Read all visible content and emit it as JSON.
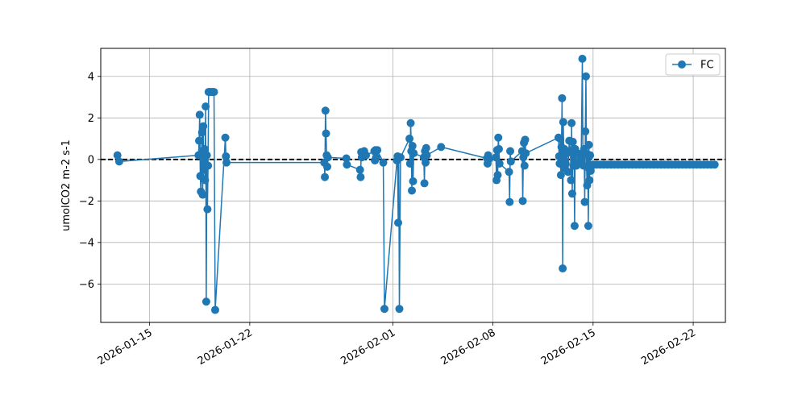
{
  "chart_data": {
    "type": "line",
    "title": "",
    "xlabel": "",
    "ylabel": "umolCO2 m-2 s-1",
    "x_axis": {
      "type": "date",
      "range": [
        "2026-01-11T14:00",
        "2026-02-24T06:00"
      ]
    },
    "ylim": [
      -7.85,
      5.35
    ],
    "x_ticks": [
      "2026-01-15",
      "2026-01-22",
      "2026-02-01",
      "2026-02-08",
      "2026-02-15",
      "2026-02-22"
    ],
    "y_ticks": [
      4,
      2,
      0,
      -2,
      -4,
      -6
    ],
    "y_tick_labels": [
      "4",
      "2",
      "0",
      "−2",
      "−4",
      "−6"
    ],
    "grid": true,
    "legend": {
      "position": "top-right",
      "entries": [
        "FC"
      ]
    },
    "reference_line": {
      "y": 0,
      "style": "dashed",
      "color": "#000000"
    },
    "colors": {
      "series": "#1f77b4"
    },
    "series": [
      {
        "name": "FC",
        "points": [
          [
            "2026-01-12T18:00",
            0.2
          ],
          [
            "2026-01-12T21:00",
            -0.1
          ],
          [
            "2026-01-18T10:00",
            0.2
          ],
          [
            "2026-01-18T11:00",
            0.9
          ],
          [
            "2026-01-18T12:00",
            2.15
          ],
          [
            "2026-01-18T13:00",
            -0.8
          ],
          [
            "2026-01-18T14:00",
            -1.55
          ],
          [
            "2026-01-18T15:00",
            0.3
          ],
          [
            "2026-01-18T16:00",
            1.3
          ],
          [
            "2026-01-18T17:00",
            -1.7
          ],
          [
            "2026-01-18T18:00",
            1.6
          ],
          [
            "2026-01-18T19:00",
            -0.5
          ],
          [
            "2026-01-18T20:00",
            0.5
          ],
          [
            "2026-01-18T21:00",
            -1.0
          ],
          [
            "2026-01-18T22:00",
            2.55
          ],
          [
            "2026-01-18T23:00",
            -6.85
          ],
          [
            "2026-01-19T00:00",
            0.2
          ],
          [
            "2026-01-19T01:00",
            -2.4
          ],
          [
            "2026-01-19T02:00",
            -0.3
          ],
          [
            "2026-01-19T03:00",
            3.25
          ],
          [
            "2026-01-19T04:00",
            3.25
          ],
          [
            "2026-01-19T06:00",
            3.25
          ],
          [
            "2026-01-19T08:00",
            3.25
          ],
          [
            "2026-01-19T10:00",
            3.25
          ],
          [
            "2026-01-19T12:00",
            3.25
          ],
          [
            "2026-01-19T14:00",
            -7.25
          ],
          [
            "2026-01-20T07:00",
            1.05
          ],
          [
            "2026-01-20T08:00",
            0.15
          ],
          [
            "2026-01-20T09:00",
            -0.15
          ],
          [
            "2026-01-27T05:00",
            -0.15
          ],
          [
            "2026-01-27T06:00",
            -0.85
          ],
          [
            "2026-01-27T07:00",
            2.35
          ],
          [
            "2026-01-27T08:00",
            1.25
          ],
          [
            "2026-01-27T09:00",
            0.2
          ],
          [
            "2026-01-27T10:00",
            -0.35
          ],
          [
            "2026-01-27T11:00",
            0.1
          ],
          [
            "2026-01-28T18:00",
            0.05
          ],
          [
            "2026-01-28T19:00",
            -0.25
          ],
          [
            "2026-01-29T17:00",
            -0.5
          ],
          [
            "2026-01-29T18:00",
            -0.85
          ],
          [
            "2026-01-29T19:00",
            0.35
          ],
          [
            "2026-01-29T20:00",
            0.1
          ],
          [
            "2026-01-29T22:00",
            0.35
          ],
          [
            "2026-01-30T00:00",
            0.4
          ],
          [
            "2026-01-30T03:00",
            0.2
          ],
          [
            "2026-01-30T17:00",
            0.4
          ],
          [
            "2026-01-30T18:00",
            -0.05
          ],
          [
            "2026-01-30T19:00",
            0.45
          ],
          [
            "2026-01-30T20:00",
            0.1
          ],
          [
            "2026-01-30T22:00",
            0.45
          ],
          [
            "2026-01-31T08:00",
            -0.15
          ],
          [
            "2026-01-31T10:00",
            -7.2
          ],
          [
            "2026-02-01T07:00",
            -0.05
          ],
          [
            "2026-02-01T08:00",
            0.15
          ],
          [
            "2026-02-01T09:00",
            -3.05
          ],
          [
            "2026-02-01T10:00",
            0.1
          ],
          [
            "2026-02-01T11:00",
            -7.2
          ],
          [
            "2026-02-01T13:00",
            0.1
          ],
          [
            "2026-02-02T04:00",
            1.0
          ],
          [
            "2026-02-02T05:00",
            -0.2
          ],
          [
            "2026-02-02T06:00",
            1.75
          ],
          [
            "2026-02-02T07:00",
            0.4
          ],
          [
            "2026-02-02T08:00",
            -1.5
          ],
          [
            "2026-02-02T09:00",
            0.65
          ],
          [
            "2026-02-02T10:00",
            -1.05
          ],
          [
            "2026-02-02T11:00",
            0.3
          ],
          [
            "2026-02-03T04:00",
            0.1
          ],
          [
            "2026-02-03T05:00",
            -1.15
          ],
          [
            "2026-02-03T06:00",
            0.4
          ],
          [
            "2026-02-03T07:00",
            -0.15
          ],
          [
            "2026-02-03T08:00",
            0.55
          ],
          [
            "2026-02-03T09:00",
            0.2
          ],
          [
            "2026-02-04T09:00",
            0.6
          ],
          [
            "2026-02-07T14:00",
            0.05
          ],
          [
            "2026-02-07T15:00",
            -0.2
          ],
          [
            "2026-02-07T16:00",
            0.2
          ],
          [
            "2026-02-07T17:00",
            0.0
          ],
          [
            "2026-02-08T05:00",
            0.1
          ],
          [
            "2026-02-08T06:00",
            -1.0
          ],
          [
            "2026-02-08T07:00",
            0.45
          ],
          [
            "2026-02-08T08:00",
            -0.75
          ],
          [
            "2026-02-08T09:00",
            1.05
          ],
          [
            "2026-02-08T10:00",
            0.5
          ],
          [
            "2026-02-08T11:00",
            -0.2
          ],
          [
            "2026-02-09T03:00",
            -0.6
          ],
          [
            "2026-02-09T04:00",
            -2.05
          ],
          [
            "2026-02-09T05:00",
            0.4
          ],
          [
            "2026-02-09T06:00",
            -0.1
          ],
          [
            "2026-02-10T01:00",
            0.4
          ],
          [
            "2026-02-10T02:00",
            -2.0
          ],
          [
            "2026-02-10T03:00",
            0.1
          ],
          [
            "2026-02-10T04:00",
            0.8
          ],
          [
            "2026-02-10T05:00",
            -0.3
          ],
          [
            "2026-02-10T06:00",
            0.95
          ],
          [
            "2026-02-10T07:00",
            0.3
          ],
          [
            "2026-02-12T14:00",
            1.05
          ],
          [
            "2026-02-12T15:00",
            0.15
          ],
          [
            "2026-02-12T16:00",
            -0.2
          ],
          [
            "2026-02-12T17:00",
            1.0
          ],
          [
            "2026-02-12T18:00",
            -0.75
          ],
          [
            "2026-02-12T19:00",
            0.6
          ],
          [
            "2026-02-12T20:00",
            2.95
          ],
          [
            "2026-02-12T21:00",
            -5.25
          ],
          [
            "2026-02-12T22:00",
            1.8
          ],
          [
            "2026-02-12T23:00",
            -0.4
          ],
          [
            "2026-02-13T00:00",
            0.5
          ],
          [
            "2026-02-13T02:00",
            -0.2
          ],
          [
            "2026-02-13T04:00",
            0.3
          ],
          [
            "2026-02-13T06:00",
            -0.6
          ],
          [
            "2026-02-13T08:00",
            0.9
          ],
          [
            "2026-02-13T10:00",
            0.4
          ],
          [
            "2026-02-13T11:00",
            -1.0
          ],
          [
            "2026-02-13T12:00",
            1.75
          ],
          [
            "2026-02-13T13:00",
            -1.65
          ],
          [
            "2026-02-13T14:00",
            0.85
          ],
          [
            "2026-02-13T15:00",
            -0.3
          ],
          [
            "2026-02-13T16:00",
            0.3
          ],
          [
            "2026-02-13T17:00",
            -3.2
          ],
          [
            "2026-02-13T18:00",
            0.5
          ],
          [
            "2026-02-13T20:00",
            -0.3
          ],
          [
            "2026-02-13T22:00",
            0.3
          ],
          [
            "2026-02-14T00:00",
            -0.2
          ],
          [
            "2026-02-14T02:00",
            0.25
          ],
          [
            "2026-02-14T04:00",
            -0.15
          ],
          [
            "2026-02-14T06:00",
            4.85
          ],
          [
            "2026-02-14T07:00",
            0.2
          ],
          [
            "2026-02-14T08:00",
            -0.3
          ],
          [
            "2026-02-14T09:00",
            0.5
          ],
          [
            "2026-02-14T10:00",
            -2.05
          ],
          [
            "2026-02-14T11:00",
            1.35
          ],
          [
            "2026-02-14T12:00",
            4.0
          ],
          [
            "2026-02-14T13:00",
            -0.35
          ],
          [
            "2026-02-14T14:00",
            -1.25
          ],
          [
            "2026-02-14T15:00",
            0.25
          ],
          [
            "2026-02-14T16:00",
            -3.2
          ],
          [
            "2026-02-14T17:00",
            0.7
          ],
          [
            "2026-02-14T18:00",
            -1.0
          ],
          [
            "2026-02-14T19:00",
            0.2
          ],
          [
            "2026-02-14T20:00",
            -0.55
          ],
          [
            "2026-02-14T22:00",
            -0.3
          ],
          [
            "2026-02-15T00:00",
            -0.25
          ],
          [
            "2026-02-15T06:00",
            -0.25
          ],
          [
            "2026-02-15T12:00",
            -0.25
          ],
          [
            "2026-02-15T18:00",
            -0.25
          ],
          [
            "2026-02-16T00:00",
            -0.25
          ],
          [
            "2026-02-16T06:00",
            -0.25
          ],
          [
            "2026-02-16T12:00",
            -0.25
          ],
          [
            "2026-02-16T18:00",
            -0.25
          ],
          [
            "2026-02-17T00:00",
            -0.25
          ],
          [
            "2026-02-17T06:00",
            -0.25
          ],
          [
            "2026-02-17T12:00",
            -0.25
          ],
          [
            "2026-02-17T18:00",
            -0.25
          ],
          [
            "2026-02-18T00:00",
            -0.25
          ],
          [
            "2026-02-18T06:00",
            -0.25
          ],
          [
            "2026-02-18T12:00",
            -0.25
          ],
          [
            "2026-02-18T18:00",
            -0.25
          ],
          [
            "2026-02-19T00:00",
            -0.25
          ],
          [
            "2026-02-19T06:00",
            -0.25
          ],
          [
            "2026-02-19T12:00",
            -0.25
          ],
          [
            "2026-02-19T18:00",
            -0.25
          ],
          [
            "2026-02-20T00:00",
            -0.25
          ],
          [
            "2026-02-20T06:00",
            -0.25
          ],
          [
            "2026-02-20T12:00",
            -0.25
          ],
          [
            "2026-02-20T18:00",
            -0.25
          ],
          [
            "2026-02-21T00:00",
            -0.25
          ],
          [
            "2026-02-21T06:00",
            -0.25
          ],
          [
            "2026-02-21T12:00",
            -0.25
          ],
          [
            "2026-02-21T18:00",
            -0.25
          ],
          [
            "2026-02-22T00:00",
            -0.25
          ],
          [
            "2026-02-22T06:00",
            -0.25
          ],
          [
            "2026-02-22T12:00",
            -0.25
          ],
          [
            "2026-02-22T18:00",
            -0.25
          ],
          [
            "2026-02-23T00:00",
            -0.25
          ],
          [
            "2026-02-23T06:00",
            -0.25
          ],
          [
            "2026-02-23T12:00",
            -0.25
          ]
        ]
      }
    ]
  }
}
